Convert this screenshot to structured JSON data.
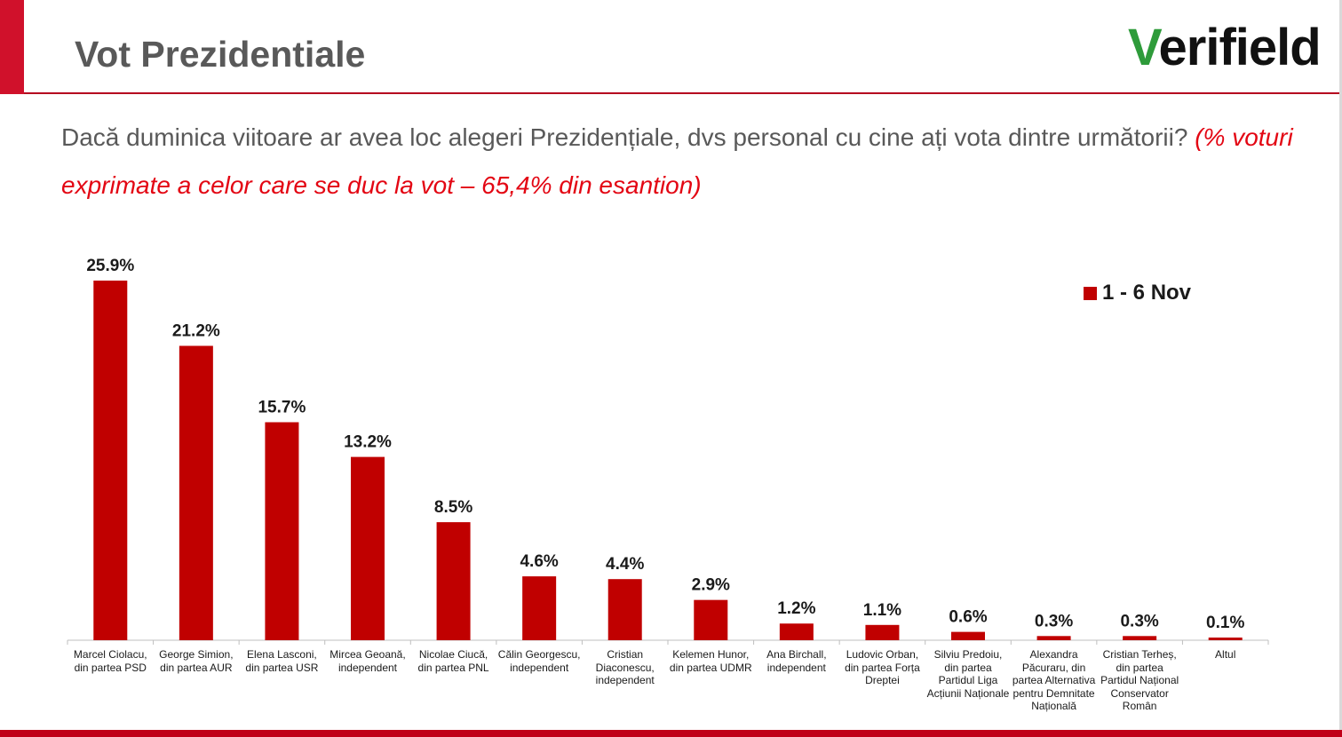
{
  "header": {
    "title": "Vot Prezidentiale",
    "logo_text": "verifield"
  },
  "question": {
    "text": "Dacă duminica viitoare ar avea loc alegeri Prezidențiale, dvs personal cu cine ați vota dintre următorii?",
    "note": "(% voturi exprimate a celor care se duc la vot – 65,4% din esantion)"
  },
  "colors": {
    "accent": "#d0112b",
    "bar": "#c00000",
    "logo_green": "#2e9b3a"
  },
  "chart_data": {
    "type": "bar",
    "categories": [
      "Marcel Ciolacu, din partea PSD",
      "George Simion, din partea AUR",
      "Elena Lasconi, din partea USR",
      "Mircea Geoană, independent",
      "Nicolae Ciucă, din partea PNL",
      "Călin Georgescu, independent",
      "Cristian Diaconescu, independent",
      "Kelemen Hunor, din partea UDMR",
      "Ana Birchall, independent",
      "Ludovic Orban, din partea Forța Dreptei",
      "Silviu Predoiu, din partea Partidul Liga Acțiunii Naționale",
      "Alexandra Păcuraru, din partea Alternativa pentru Demnitate Națională",
      "Cristian Terheș, din partea Partidul Național Conservator Român",
      "Altul"
    ],
    "series": [
      {
        "name": "1 - 6 Nov",
        "values": [
          25.9,
          21.2,
          15.7,
          13.2,
          8.5,
          4.6,
          4.4,
          2.9,
          1.2,
          1.1,
          0.6,
          0.3,
          0.3,
          0.1
        ],
        "labels": [
          "25.9%",
          "21.2%",
          "15.7%",
          "13.2%",
          "8.5%",
          "4.6%",
          "4.4%",
          "2.9%",
          "1.2%",
          "1.1%",
          "0.6%",
          "0.3%",
          "0.3%",
          "0.1%"
        ]
      }
    ],
    "ylim": [
      0,
      25.9
    ],
    "grid": false,
    "legend_position": "top-right"
  }
}
